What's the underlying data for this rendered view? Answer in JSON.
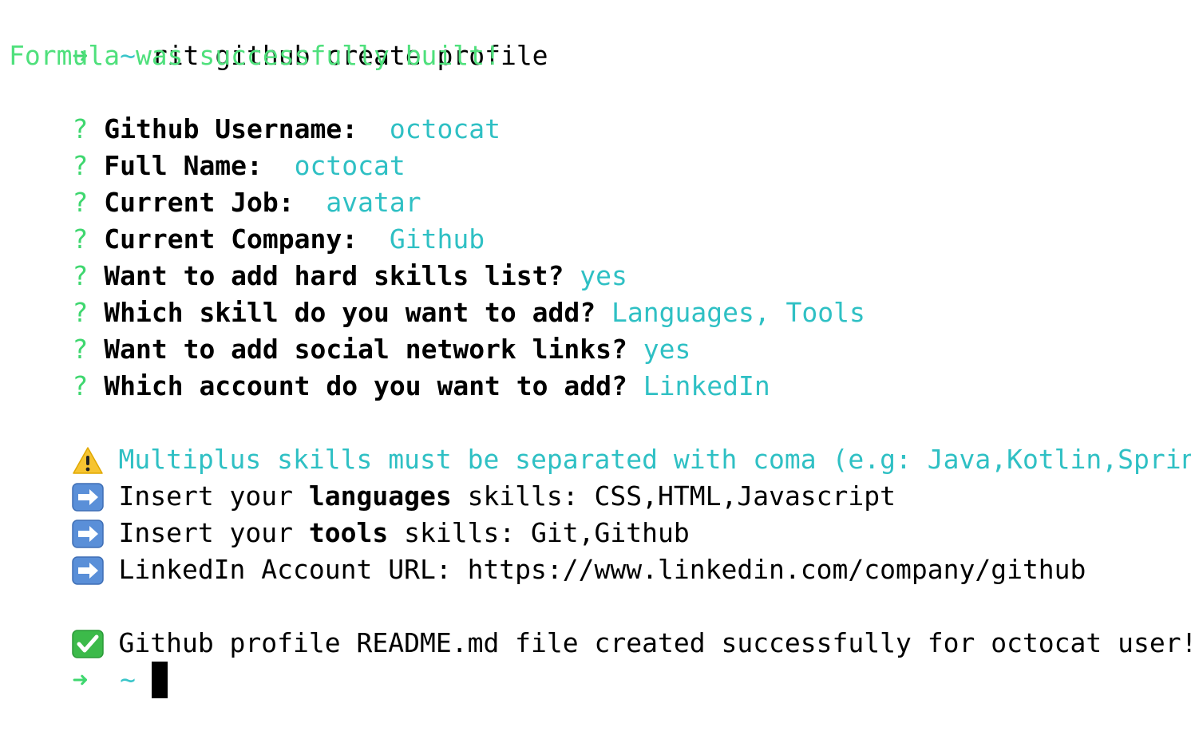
{
  "prompt": {
    "arrow": "➜",
    "tilde": "~"
  },
  "command": "rit github create profile",
  "built_message": "Formula was successfully built!",
  "question_mark": "?",
  "questions": [
    {
      "label": "Github Username: ",
      "answer": "octocat"
    },
    {
      "label": "Full Name: ",
      "answer": "octocat"
    },
    {
      "label": "Current Job: ",
      "answer": "avatar"
    },
    {
      "label": "Current Company: ",
      "answer": "Github"
    },
    {
      "label": "Want to add hard skills list?",
      "answer": "yes"
    },
    {
      "label": "Which skill do you want to add?",
      "answer": "Languages, Tools"
    },
    {
      "label": "Want to add social network links?",
      "answer": "yes"
    },
    {
      "label": "Which account do you want to add?",
      "answer": "LinkedIn"
    }
  ],
  "warning": "Multiplus skills must be separated with coma (e.g: Java,Kotlin,Spring)",
  "inputs": [
    {
      "prefix": "Insert your ",
      "bold": "languages",
      "suffix": " skills: CSS,HTML,Javascript"
    },
    {
      "prefix": "Insert your ",
      "bold": "tools",
      "suffix": " skills: Git,Github"
    },
    {
      "prefix": "LinkedIn Account URL: https://www.linkedin.com/company/github",
      "bold": "",
      "suffix": ""
    }
  ],
  "final_message": "Github profile README.md file created successfully for octocat user!",
  "icons": {
    "warning": "warning-sign-icon",
    "arrow": "right-arrow-icon",
    "check": "check-mark-icon"
  },
  "colors": {
    "prompt_arrow": "#3fd76f",
    "tilde": "#39c5c9",
    "answer": "#2fc0c4",
    "success": "#4fe07c"
  }
}
